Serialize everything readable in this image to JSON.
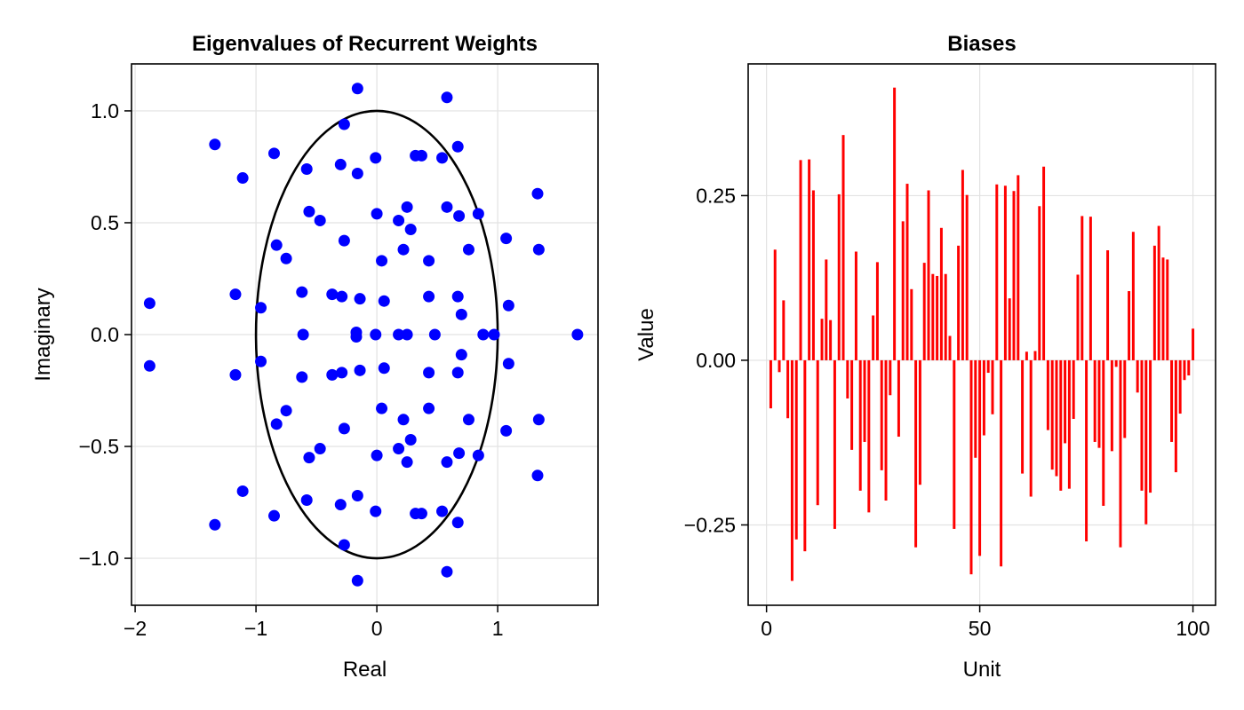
{
  "chart_data": [
    {
      "type": "scatter",
      "title": "Eigenvalues of Recurrent Weights",
      "xlabel": "Real",
      "ylabel": "Imaginary",
      "xlim": [
        -2.03,
        1.83
      ],
      "ylim": [
        -1.21,
        1.21
      ],
      "xticks": [
        -2,
        -1,
        0,
        1
      ],
      "xtick_labels": [
        "−2",
        "−1",
        "0",
        "1"
      ],
      "yticks": [
        -1.0,
        -0.5,
        0.0,
        0.5,
        1.0
      ],
      "ytick_labels": [
        "−1.0",
        "−0.5",
        "0.0",
        "0.5",
        "1.0"
      ],
      "grid": true,
      "point_color": "#0000ff",
      "circle_color": "#000000",
      "unit_circle": true,
      "points": [
        [
          -0.16,
          1.1
        ],
        [
          -0.16,
          -1.1
        ],
        [
          0.58,
          1.06
        ],
        [
          0.58,
          -1.06
        ],
        [
          -1.34,
          0.85
        ],
        [
          -1.34,
          -0.85
        ],
        [
          -0.27,
          0.94
        ],
        [
          -0.27,
          -0.94
        ],
        [
          0.67,
          0.84
        ],
        [
          0.67,
          -0.84
        ],
        [
          -0.85,
          0.81
        ],
        [
          -0.85,
          -0.81
        ],
        [
          0.32,
          0.8
        ],
        [
          0.32,
          -0.8
        ],
        [
          0.37,
          0.8
        ],
        [
          0.37,
          -0.8
        ],
        [
          0.54,
          0.79
        ],
        [
          0.54,
          -0.79
        ],
        [
          -0.01,
          0.79
        ],
        [
          -0.01,
          -0.79
        ],
        [
          -0.3,
          0.76
        ],
        [
          -0.3,
          -0.76
        ],
        [
          -0.58,
          0.74
        ],
        [
          -0.58,
          -0.74
        ],
        [
          -0.16,
          0.72
        ],
        [
          -0.16,
          -0.72
        ],
        [
          -1.11,
          0.7
        ],
        [
          -1.11,
          -0.7
        ],
        [
          1.33,
          0.63
        ],
        [
          1.33,
          -0.63
        ],
        [
          0.25,
          0.57
        ],
        [
          0.25,
          -0.57
        ],
        [
          0.58,
          0.57
        ],
        [
          0.58,
          -0.57
        ],
        [
          -0.56,
          0.55
        ],
        [
          -0.56,
          -0.55
        ],
        [
          0.84,
          0.54
        ],
        [
          0.84,
          -0.54
        ],
        [
          0.68,
          0.53
        ],
        [
          0.68,
          -0.53
        ],
        [
          0.0,
          0.54
        ],
        [
          0.0,
          -0.54
        ],
        [
          -0.47,
          0.51
        ],
        [
          -0.47,
          -0.51
        ],
        [
          0.18,
          0.51
        ],
        [
          0.18,
          -0.51
        ],
        [
          0.28,
          0.47
        ],
        [
          0.28,
          -0.47
        ],
        [
          1.07,
          0.43
        ],
        [
          1.07,
          -0.43
        ],
        [
          -0.27,
          0.42
        ],
        [
          -0.27,
          -0.42
        ],
        [
          -0.83,
          0.4
        ],
        [
          -0.83,
          -0.4
        ],
        [
          0.22,
          0.38
        ],
        [
          0.22,
          -0.38
        ],
        [
          0.76,
          0.38
        ],
        [
          0.76,
          -0.38
        ],
        [
          1.34,
          0.38
        ],
        [
          1.34,
          -0.38
        ],
        [
          -0.75,
          0.34
        ],
        [
          -0.75,
          -0.34
        ],
        [
          0.04,
          0.33
        ],
        [
          0.04,
          -0.33
        ],
        [
          0.43,
          0.33
        ],
        [
          0.43,
          -0.33
        ],
        [
          -0.62,
          0.19
        ],
        [
          -0.62,
          -0.19
        ],
        [
          -1.17,
          0.18
        ],
        [
          -1.17,
          -0.18
        ],
        [
          -0.37,
          0.18
        ],
        [
          -0.37,
          -0.18
        ],
        [
          -0.29,
          0.17
        ],
        [
          -0.29,
          -0.17
        ],
        [
          0.43,
          0.17
        ],
        [
          0.43,
          -0.17
        ],
        [
          0.67,
          0.17
        ],
        [
          0.67,
          -0.17
        ],
        [
          -0.14,
          0.16
        ],
        [
          -0.14,
          -0.16
        ],
        [
          0.06,
          0.15
        ],
        [
          0.06,
          -0.15
        ],
        [
          -1.88,
          0.14
        ],
        [
          -1.88,
          -0.14
        ],
        [
          1.09,
          0.13
        ],
        [
          1.09,
          -0.13
        ],
        [
          -0.96,
          0.12
        ],
        [
          -0.96,
          -0.12
        ],
        [
          0.7,
          0.09
        ],
        [
          0.7,
          -0.09
        ],
        [
          -0.17,
          0.01
        ],
        [
          -0.17,
          -0.01
        ],
        [
          -0.61,
          0.0
        ],
        [
          -0.01,
          0.0
        ],
        [
          0.18,
          0.0
        ],
        [
          0.25,
          0.0
        ],
        [
          0.48,
          0.0
        ],
        [
          0.88,
          0.0
        ],
        [
          0.97,
          0.0
        ],
        [
          1.66,
          0.0
        ]
      ]
    },
    {
      "type": "bar",
      "title": "Biases",
      "xlabel": "Unit",
      "ylabel": "Value",
      "xlim": [
        -4.3,
        105.3
      ],
      "ylim": [
        -0.372,
        0.45
      ],
      "xticks": [
        0,
        50,
        100
      ],
      "xtick_labels": [
        "0",
        "50",
        "100"
      ],
      "yticks": [
        -0.25,
        0.0,
        0.25
      ],
      "ytick_labels": [
        "−0.25",
        "0.00",
        "0.25"
      ],
      "grid": true,
      "bar_color": "#ff0000",
      "x": [
        1,
        2,
        3,
        4,
        5,
        6,
        7,
        8,
        9,
        10,
        11,
        12,
        13,
        14,
        15,
        16,
        17,
        18,
        19,
        20,
        21,
        22,
        23,
        24,
        25,
        26,
        27,
        28,
        29,
        30,
        31,
        32,
        33,
        34,
        35,
        36,
        37,
        38,
        39,
        40,
        41,
        42,
        43,
        44,
        45,
        46,
        47,
        48,
        49,
        50,
        51,
        52,
        53,
        54,
        55,
        56,
        57,
        58,
        59,
        60,
        61,
        62,
        63,
        64,
        65,
        66,
        67,
        68,
        69,
        70,
        71,
        72,
        73,
        74,
        75,
        76,
        77,
        78,
        79,
        80,
        81,
        82,
        83,
        84,
        85,
        86,
        87,
        88,
        89,
        90,
        91,
        92,
        93,
        94,
        95,
        96,
        97,
        98,
        99,
        100
      ],
      "values": [
        -0.073,
        0.168,
        -0.018,
        0.091,
        -0.088,
        -0.335,
        -0.272,
        0.304,
        -0.29,
        0.305,
        0.258,
        -0.22,
        0.063,
        0.153,
        0.061,
        -0.256,
        0.252,
        0.342,
        -0.058,
        -0.136,
        0.165,
        -0.198,
        -0.124,
        -0.231,
        0.068,
        0.149,
        -0.167,
        -0.213,
        -0.053,
        0.414,
        -0.116,
        0.211,
        0.268,
        0.108,
        -0.284,
        -0.189,
        0.148,
        0.258,
        0.131,
        0.128,
        0.201,
        0.131,
        0.037,
        -0.256,
        0.174,
        0.289,
        0.251,
        -0.325,
        -0.148,
        -0.297,
        -0.114,
        -0.019,
        -0.082,
        0.267,
        -0.313,
        0.265,
        0.094,
        0.257,
        0.281,
        -0.172,
        0.013,
        -0.207,
        0.014,
        0.234,
        0.294,
        -0.106,
        -0.166,
        -0.176,
        -0.198,
        -0.126,
        -0.195,
        -0.089,
        0.13,
        0.219,
        -0.275,
        0.218,
        -0.124,
        -0.133,
        -0.221,
        0.167,
        -0.138,
        -0.01,
        -0.284,
        -0.118,
        0.105,
        0.195,
        -0.049,
        -0.198,
        -0.249,
        -0.201,
        0.174,
        0.204,
        0.156,
        0.153,
        -0.124,
        -0.17,
        -0.081,
        -0.03,
        -0.023,
        0.048
      ]
    }
  ]
}
